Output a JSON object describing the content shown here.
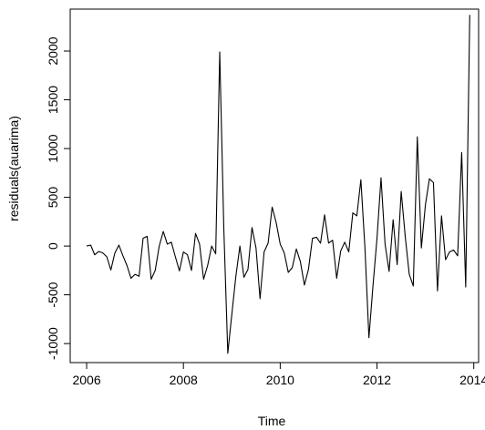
{
  "chart_data": {
    "type": "line",
    "xlabel": "Time",
    "ylabel": "residuals(auarima)",
    "xlim": [
      2005.66,
      2014.1
    ],
    "ylim": [
      -1195,
      2430
    ],
    "x_ticks": [
      2006,
      2008,
      2010,
      2012,
      2014
    ],
    "x_tick_labels": [
      "2006",
      "2008",
      "2010",
      "2012",
      "2014"
    ],
    "y_ticks": [
      -1000,
      -500,
      0,
      500,
      1000,
      1500,
      2000
    ],
    "y_tick_labels": [
      "-1000",
      "-500",
      "0",
      "500",
      "1000",
      "1500",
      "2000"
    ],
    "line_color": "#000000",
    "series": [
      {
        "start": 2006.0,
        "frequency": 12,
        "values": [
          0,
          10,
          -90,
          -55,
          -70,
          -110,
          -245,
          -70,
          10,
          -100,
          -200,
          -330,
          -290,
          -310,
          80,
          100,
          -340,
          -250,
          0,
          150,
          20,
          40,
          -110,
          -255,
          -60,
          -90,
          -250,
          130,
          20,
          -340,
          -200,
          0,
          -80,
          1990,
          200,
          -1100,
          -700,
          -310,
          0,
          -320,
          -240,
          190,
          -20,
          -540,
          -60,
          30,
          400,
          240,
          20,
          -70,
          -270,
          -220,
          -30,
          -160,
          -400,
          -240,
          80,
          90,
          30,
          320,
          30,
          60,
          -330,
          -50,
          40,
          -60,
          340,
          310,
          680,
          -10,
          -940,
          -410,
          80,
          700,
          20,
          -260,
          270,
          -190,
          560,
          100,
          -290,
          -410,
          1120,
          -20,
          420,
          690,
          650,
          -460,
          310,
          -140,
          -60,
          -40,
          -100,
          960,
          -420,
          2370
        ]
      }
    ]
  }
}
